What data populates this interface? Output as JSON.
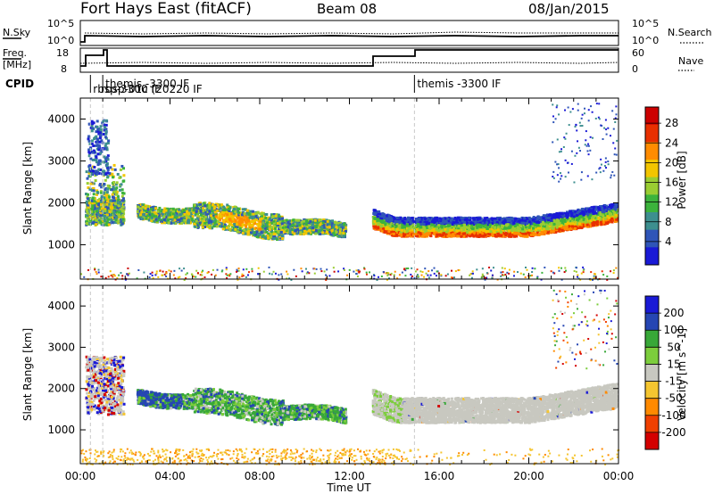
{
  "header": {
    "title": "Fort Hays East (fitACF)",
    "beam": "Beam 08",
    "date": "08/Jan/2015"
  },
  "status_panel": {
    "nsky_label": "N.Sky",
    "nsky_ticks": [
      "10^5",
      "10^0"
    ],
    "nsearch_label": "N.Search",
    "nsearch_ticks": [
      "10^5",
      "10^0"
    ],
    "freq_label_line1": "Freq.",
    "freq_label_line2": "[MHz]",
    "freq_ticks": [
      "18",
      "8"
    ],
    "nave_label": "Nave",
    "nave_ticks": [
      "60",
      "0"
    ],
    "cpid_label": "CPID"
  },
  "cpid_annotations": [
    {
      "text": "themis -3300 IF",
      "t_hours": 1.0
    },
    {
      "text": "rbsp-3300 IF",
      "t_hours": 0.45
    },
    {
      "text": "rbsp-01c (20220 IF",
      "t_hours": 0.8
    },
    {
      "text": "themis -3300 IF",
      "t_hours": 14.9
    }
  ],
  "cpid_changes_hours": [
    0.45,
    1.0,
    14.9
  ],
  "colors": {
    "power": [
      "#1a1ad6",
      "#2f55b8",
      "#3d8f8f",
      "#3cb33c",
      "#9acd32",
      "#f2c500",
      "#ff8c00",
      "#e83000",
      "#cc0000"
    ],
    "velocity": [
      "#1a1ad6",
      "#2646b3",
      "#38a838",
      "#7ccd3c",
      "#c8c8c0",
      "#f5c530",
      "#ff8a00",
      "#f04000",
      "#d40000"
    ]
  },
  "chart_data": [
    {
      "type": "heatmap",
      "title": "",
      "xlabel": "",
      "ylabel": "Slant Range [km]",
      "xlim": [
        0,
        24
      ],
      "ylim": [
        180,
        4500
      ],
      "yticks": [
        1000,
        2000,
        3000,
        4000
      ],
      "colorbar": {
        "label": "Power [dB]",
        "ticks": [
          4,
          8,
          12,
          16,
          20,
          24,
          28
        ],
        "range": [
          0,
          30
        ]
      },
      "features": [
        {
          "t_start": 0.2,
          "t_end": 1.9,
          "range_center_km": 1750,
          "range_width_km": 500,
          "value": 12
        },
        {
          "t_start": 0.3,
          "t_end": 1.2,
          "range_center_km": 3200,
          "range_width_km": 900,
          "value": 8
        },
        {
          "t_start": 2.5,
          "t_end": 11.8,
          "range_center_km": 1600,
          "range_width_km": 450,
          "value": 14
        },
        {
          "t_start": 13.0,
          "t_end": 23.9,
          "range_center_km": 1500,
          "range_width_km": 350,
          "value": 16
        }
      ]
    },
    {
      "type": "heatmap",
      "title": "",
      "xlabel": "Time UT",
      "ylabel": "Slant Range [km]",
      "xlim": [
        0,
        24
      ],
      "ylim": [
        180,
        4500
      ],
      "xticks": [
        "00:00",
        "04:00",
        "08:00",
        "12:00",
        "16:00",
        "20:00",
        "00:00"
      ],
      "yticks": [
        1000,
        2000,
        3000,
        4000
      ],
      "colorbar": {
        "label": "Velocity [m s^-1]",
        "ticks": [
          200,
          100,
          50,
          15,
          -15,
          -50,
          -100,
          -200
        ]
      },
      "features": [
        {
          "t_start": 0.2,
          "t_end": 1.9,
          "range_center_km": 2200,
          "range_width_km": 900,
          "value": -15
        },
        {
          "t_start": 2.5,
          "t_end": 11.8,
          "range_center_km": 1650,
          "range_width_km": 500,
          "value": 50
        },
        {
          "t_start": 13.0,
          "t_end": 23.9,
          "range_center_km": 1700,
          "range_width_km": 500,
          "value": 0
        }
      ]
    }
  ]
}
